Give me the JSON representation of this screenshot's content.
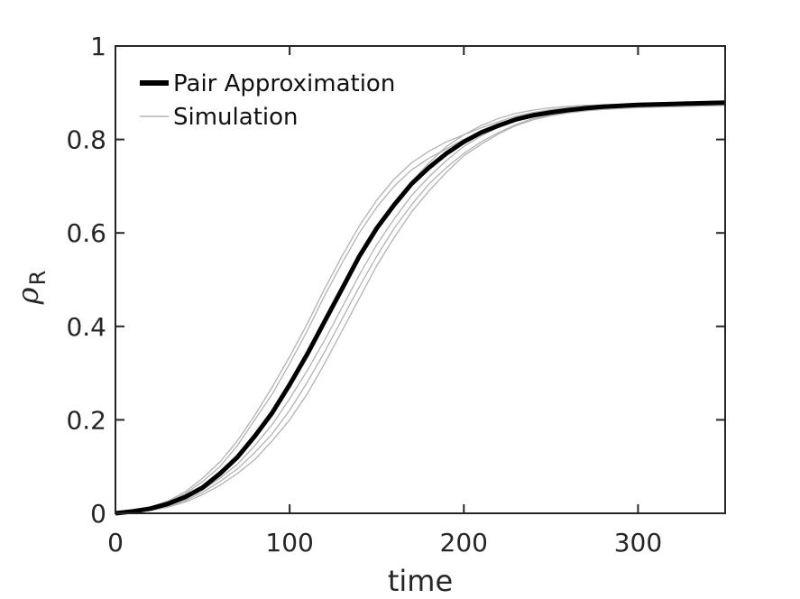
{
  "chart_data": {
    "type": "line",
    "xlabel": "time",
    "ylabel": "ρ",
    "ylabel_subscript": "R",
    "xlim": [
      0,
      350
    ],
    "ylim": [
      0,
      1
    ],
    "xticks": [
      0,
      100,
      200,
      300
    ],
    "xtick_labels": [
      "0",
      "100",
      "200",
      "300"
    ],
    "yticks": [
      0,
      0.2,
      0.4,
      0.6,
      0.8,
      1
    ],
    "ytick_labels": [
      "0",
      "0.2",
      "0.4",
      "0.6",
      "0.8",
      "1"
    ],
    "grid": false,
    "legend_position": "top-left",
    "series": [
      {
        "name": "Pair Approximation",
        "color": "#000000",
        "style": "thick",
        "x": [
          0,
          10,
          20,
          30,
          40,
          50,
          60,
          70,
          80,
          90,
          100,
          110,
          120,
          130,
          140,
          150,
          160,
          170,
          180,
          190,
          200,
          210,
          220,
          230,
          240,
          250,
          260,
          270,
          280,
          290,
          300,
          310,
          320,
          330,
          340,
          350
        ],
        "y": [
          0.0,
          0.004,
          0.01,
          0.02,
          0.035,
          0.055,
          0.085,
          0.12,
          0.165,
          0.215,
          0.275,
          0.34,
          0.41,
          0.48,
          0.55,
          0.61,
          0.66,
          0.705,
          0.74,
          0.77,
          0.795,
          0.815,
          0.83,
          0.843,
          0.852,
          0.858,
          0.863,
          0.867,
          0.87,
          0.872,
          0.874,
          0.875,
          0.876,
          0.877,
          0.878,
          0.879
        ]
      },
      {
        "name": "Simulation",
        "color": "#b3b3b3",
        "style": "thin",
        "x": [
          0,
          10,
          20,
          30,
          40,
          50,
          60,
          70,
          80,
          90,
          100,
          110,
          120,
          130,
          140,
          150,
          160,
          170,
          180,
          190,
          200,
          210,
          220,
          230,
          240,
          250,
          260,
          270,
          280,
          290,
          300,
          310,
          320,
          330,
          340,
          350
        ],
        "y": [
          0.0,
          0.005,
          0.012,
          0.024,
          0.042,
          0.068,
          0.1,
          0.145,
          0.2,
          0.255,
          0.32,
          0.39,
          0.465,
          0.535,
          0.6,
          0.655,
          0.7,
          0.735,
          0.76,
          0.78,
          0.8,
          0.815,
          0.828,
          0.84,
          0.848,
          0.855,
          0.86,
          0.864,
          0.867,
          0.869,
          0.871,
          0.872,
          0.873,
          0.874,
          0.875,
          0.876
        ]
      },
      {
        "name": "",
        "color": "#b3b3b3",
        "style": "thin",
        "x": [
          0,
          10,
          20,
          30,
          40,
          50,
          60,
          70,
          80,
          90,
          100,
          110,
          120,
          130,
          140,
          150,
          160,
          170,
          180,
          190,
          200,
          210,
          220,
          230,
          240,
          250,
          260,
          270,
          280,
          290,
          300,
          310,
          320,
          330,
          340,
          350
        ],
        "y": [
          0.0,
          0.003,
          0.008,
          0.017,
          0.03,
          0.05,
          0.075,
          0.105,
          0.145,
          0.19,
          0.245,
          0.305,
          0.37,
          0.44,
          0.51,
          0.575,
          0.63,
          0.68,
          0.72,
          0.755,
          0.785,
          0.808,
          0.826,
          0.84,
          0.85,
          0.857,
          0.862,
          0.866,
          0.869,
          0.871,
          0.872,
          0.873,
          0.874,
          0.875,
          0.876,
          0.877
        ]
      },
      {
        "name": "",
        "color": "#b3b3b3",
        "style": "thin",
        "x": [
          0,
          10,
          20,
          30,
          40,
          50,
          60,
          70,
          80,
          90,
          100,
          110,
          120,
          130,
          140,
          150,
          160,
          170,
          180,
          190,
          200,
          210,
          220,
          230,
          240,
          250,
          260,
          270,
          280,
          290,
          300,
          310,
          320,
          330,
          340,
          350
        ],
        "y": [
          0.0,
          0.003,
          0.007,
          0.015,
          0.027,
          0.045,
          0.068,
          0.095,
          0.13,
          0.17,
          0.22,
          0.28,
          0.345,
          0.415,
          0.485,
          0.55,
          0.61,
          0.66,
          0.705,
          0.74,
          0.77,
          0.795,
          0.815,
          0.832,
          0.845,
          0.853,
          0.859,
          0.863,
          0.866,
          0.868,
          0.87,
          0.871,
          0.872,
          0.873,
          0.874,
          0.875
        ]
      },
      {
        "name": "",
        "color": "#b3b3b3",
        "style": "thin",
        "x": [
          0,
          10,
          20,
          30,
          40,
          50,
          60,
          70,
          80,
          90,
          100,
          110,
          120,
          130,
          140,
          150,
          160,
          170,
          180,
          190,
          200,
          210,
          220,
          230,
          240,
          250,
          260,
          270,
          280,
          290,
          300,
          310,
          320,
          330,
          340,
          350
        ],
        "y": [
          0.0,
          0.004,
          0.01,
          0.02,
          0.034,
          0.054,
          0.08,
          0.115,
          0.16,
          0.21,
          0.27,
          0.335,
          0.405,
          0.475,
          0.545,
          0.605,
          0.66,
          0.71,
          0.75,
          0.785,
          0.81,
          0.83,
          0.845,
          0.856,
          0.863,
          0.868,
          0.871,
          0.873,
          0.874,
          0.875,
          0.876,
          0.876,
          0.877,
          0.877,
          0.878,
          0.878
        ]
      },
      {
        "name": "",
        "color": "#b3b3b3",
        "style": "thin",
        "x": [
          0,
          10,
          20,
          30,
          40,
          50,
          60,
          70,
          80,
          90,
          100,
          110,
          120,
          130,
          140,
          150,
          160,
          170,
          180,
          190,
          200,
          210,
          220,
          230,
          240,
          250,
          260,
          270,
          280,
          290,
          300,
          310,
          320,
          330,
          340,
          350
        ],
        "y": [
          0.0,
          0.002,
          0.006,
          0.013,
          0.024,
          0.04,
          0.06,
          0.085,
          0.115,
          0.155,
          0.2,
          0.255,
          0.32,
          0.39,
          0.46,
          0.53,
          0.59,
          0.645,
          0.69,
          0.73,
          0.765,
          0.79,
          0.812,
          0.83,
          0.842,
          0.851,
          0.857,
          0.861,
          0.864,
          0.866,
          0.868,
          0.869,
          0.87,
          0.871,
          0.872,
          0.873
        ]
      },
      {
        "name": "",
        "color": "#b3b3b3",
        "style": "thin",
        "x": [
          0,
          10,
          20,
          30,
          40,
          50,
          60,
          70,
          80,
          90,
          100,
          110,
          120,
          130,
          140,
          150,
          160,
          170,
          180,
          190,
          200,
          210,
          220,
          230,
          240,
          250,
          260,
          270,
          280,
          290,
          300,
          310,
          320,
          330,
          340,
          350
        ],
        "y": [
          0.0,
          0.005,
          0.013,
          0.026,
          0.046,
          0.075,
          0.11,
          0.155,
          0.21,
          0.27,
          0.335,
          0.405,
          0.48,
          0.55,
          0.615,
          0.67,
          0.715,
          0.75,
          0.775,
          0.795,
          0.81,
          0.825,
          0.838,
          0.85,
          0.858,
          0.864,
          0.868,
          0.871,
          0.873,
          0.874,
          0.875,
          0.876,
          0.876,
          0.877,
          0.877,
          0.877
        ]
      }
    ]
  }
}
